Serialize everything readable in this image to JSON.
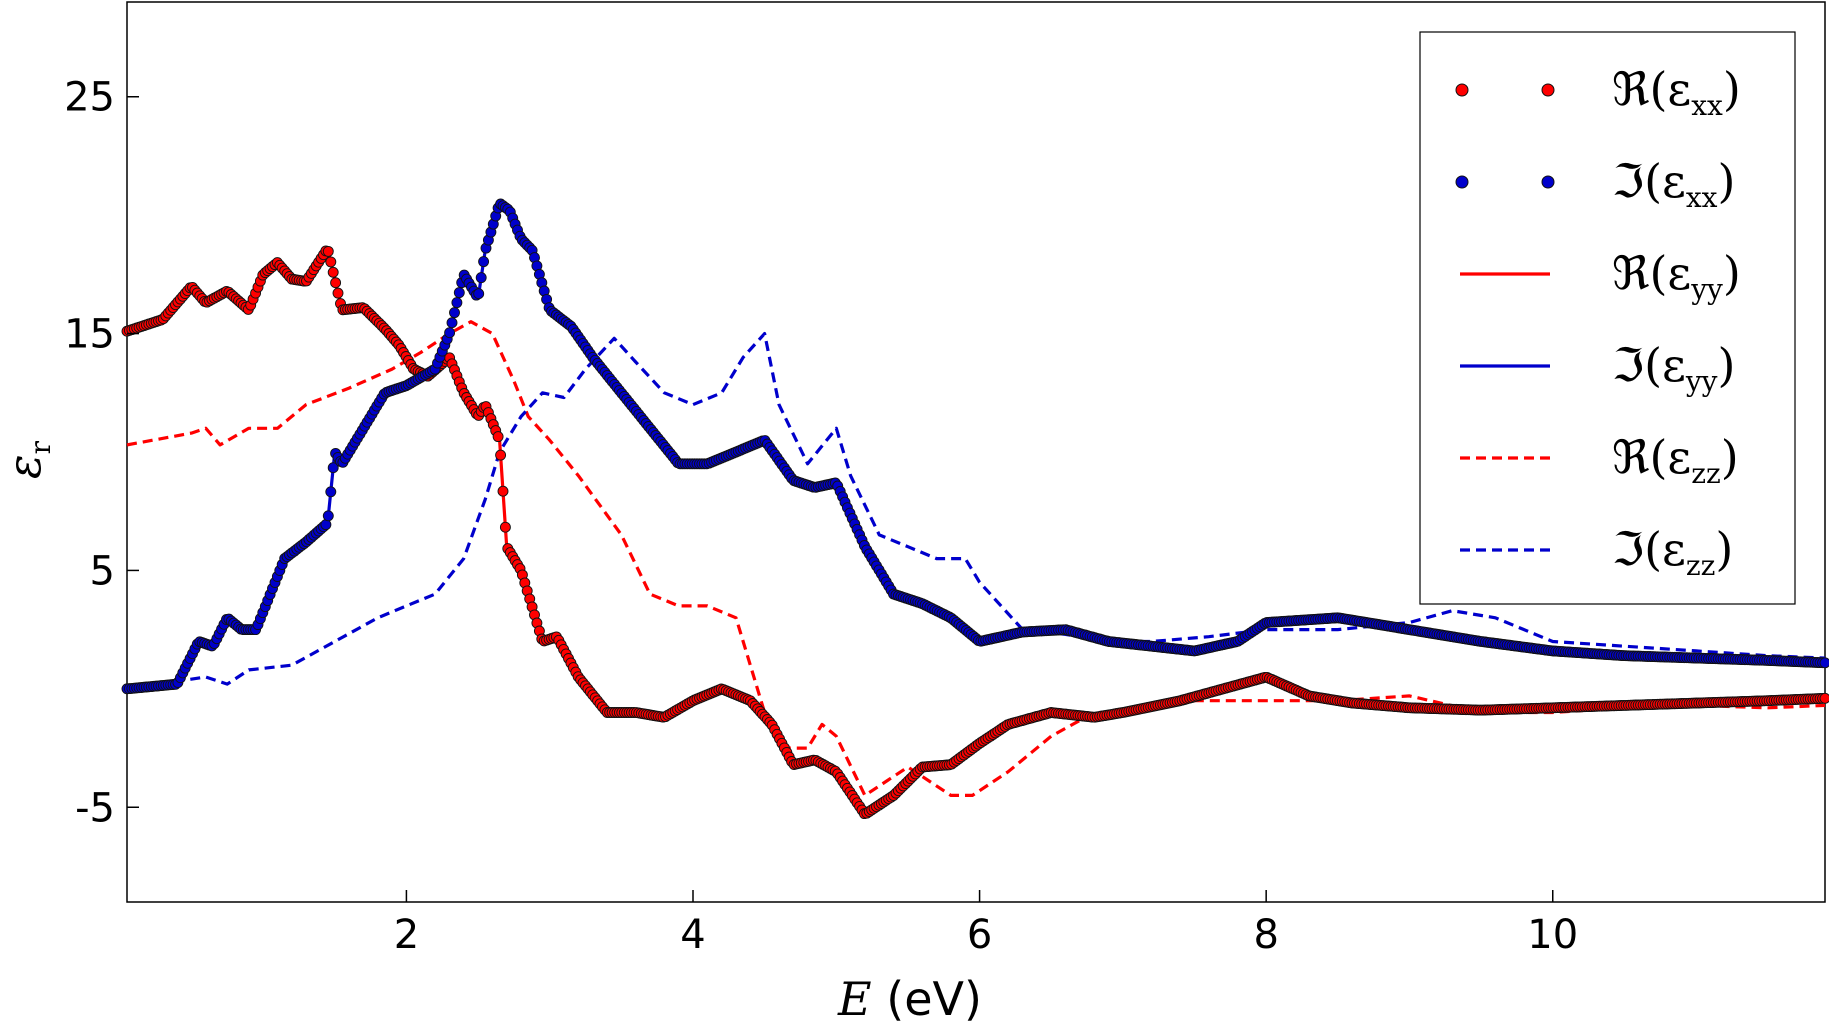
{
  "chart_data": {
    "type": "line",
    "title": "",
    "xlabel": {
      "var": "E",
      "unit": " (eV)"
    },
    "ylabel": {
      "var": "ε",
      "sub": "r"
    },
    "xlim": [
      0.05,
      11.9
    ],
    "ylim": [
      -9,
      29
    ],
    "xticks": [
      2,
      4,
      6,
      8,
      10
    ],
    "xtick_labels": [
      "2",
      "4",
      "6",
      "8",
      "10"
    ],
    "yticks": [
      -5,
      5,
      15,
      25
    ],
    "ytick_labels": [
      "-5",
      "5",
      "15",
      "25"
    ],
    "grid": false,
    "legend_position": "top-right",
    "colors": {
      "real": "#ff0000",
      "imag": "#0000cc"
    },
    "series": [
      {
        "name": "ℜ(εxx)",
        "legend_main": "ℜ(ε",
        "legend_sub": "xx",
        "legend_close": ")",
        "style": "markers",
        "color": "#ff0000",
        "x": [
          0.05,
          0.3,
          0.5,
          0.6,
          0.75,
          0.9,
          1.0,
          1.1,
          1.2,
          1.3,
          1.45,
          1.55,
          1.7,
          1.85,
          1.95,
          2.05,
          2.15,
          2.3,
          2.4,
          2.5,
          2.55,
          2.65,
          2.7,
          2.8,
          2.95,
          3.05,
          3.2,
          3.4,
          3.6,
          3.8,
          4.0,
          4.2,
          4.4,
          4.55,
          4.7,
          4.85,
          5.0,
          5.2,
          5.4,
          5.6,
          5.8,
          6.0,
          6.2,
          6.5,
          6.8,
          7.0,
          7.4,
          7.7,
          8.0,
          8.3,
          8.6,
          9.0,
          9.5,
          10.0,
          10.5,
          11.0,
          11.5,
          11.9
        ],
        "values": [
          15.1,
          15.6,
          17.0,
          16.3,
          16.8,
          16.0,
          17.5,
          18.0,
          17.3,
          17.2,
          18.6,
          16.0,
          16.1,
          15.2,
          14.5,
          13.5,
          13.2,
          14.0,
          12.5,
          11.5,
          12.0,
          10.5,
          6.0,
          5.0,
          2.0,
          2.2,
          0.5,
          -1.0,
          -1.0,
          -1.2,
          -0.5,
          0.0,
          -0.5,
          -1.5,
          -3.2,
          -3.0,
          -3.5,
          -5.3,
          -4.5,
          -3.3,
          -3.2,
          -2.3,
          -1.5,
          -1.0,
          -1.2,
          -1.0,
          -0.5,
          0.0,
          0.5,
          -0.3,
          -0.6,
          -0.8,
          -0.9,
          -0.8,
          -0.7,
          -0.6,
          -0.5,
          -0.4
        ]
      },
      {
        "name": "ℑ(εxx)",
        "legend_main": "ℑ(ε",
        "legend_sub": "xx",
        "legend_close": ")",
        "style": "markers",
        "color": "#0000cc",
        "x": [
          0.05,
          0.4,
          0.55,
          0.65,
          0.75,
          0.85,
          0.95,
          1.05,
          1.15,
          1.3,
          1.45,
          1.5,
          1.55,
          1.65,
          1.85,
          2.0,
          2.2,
          2.3,
          2.4,
          2.5,
          2.55,
          2.65,
          2.72,
          2.8,
          2.88,
          3.0,
          3.15,
          3.3,
          3.5,
          3.7,
          3.9,
          4.1,
          4.3,
          4.5,
          4.7,
          4.85,
          5.0,
          5.2,
          5.4,
          5.6,
          5.8,
          6.0,
          6.3,
          6.6,
          6.9,
          7.2,
          7.5,
          7.8,
          8.0,
          8.5,
          9.0,
          9.5,
          10.0,
          10.5,
          11.0,
          11.5,
          11.9
        ],
        "values": [
          0.0,
          0.2,
          2.0,
          1.8,
          3.0,
          2.5,
          2.5,
          4.0,
          5.5,
          6.2,
          7.0,
          10.0,
          9.5,
          10.5,
          12.5,
          12.8,
          13.5,
          15.0,
          17.5,
          16.5,
          18.5,
          20.5,
          20.2,
          19.0,
          18.5,
          16.0,
          15.3,
          14.0,
          12.5,
          11.0,
          9.5,
          9.5,
          10.0,
          10.5,
          8.8,
          8.5,
          8.7,
          6.0,
          4.0,
          3.6,
          3.0,
          2.0,
          2.4,
          2.5,
          2.0,
          1.8,
          1.6,
          2.0,
          2.8,
          3.0,
          2.5,
          2.0,
          1.6,
          1.4,
          1.3,
          1.2,
          1.1
        ]
      },
      {
        "name": "ℜ(εyy)",
        "legend_main": "ℜ(ε",
        "legend_sub": "yy",
        "legend_close": ")",
        "style": "solid",
        "color": "#ff0000",
        "x": [
          0.05,
          0.3,
          0.5,
          0.6,
          0.75,
          0.9,
          1.0,
          1.1,
          1.2,
          1.3,
          1.45,
          1.55,
          1.7,
          1.85,
          1.95,
          2.05,
          2.15,
          2.3,
          2.4,
          2.5,
          2.55,
          2.65,
          2.7,
          2.8,
          2.95,
          3.05,
          3.2,
          3.4,
          3.6,
          3.8,
          4.0,
          4.2,
          4.4,
          4.55,
          4.7,
          4.85,
          5.0,
          5.2,
          5.4,
          5.6,
          5.8,
          6.0,
          6.2,
          6.5,
          6.8,
          7.0,
          7.4,
          7.7,
          8.0,
          8.3,
          8.6,
          9.0,
          9.5,
          10.0,
          10.5,
          11.0,
          11.5,
          11.9
        ],
        "values": [
          15.1,
          15.6,
          17.0,
          16.3,
          16.8,
          16.0,
          17.5,
          18.0,
          17.3,
          17.2,
          18.6,
          16.0,
          16.1,
          15.2,
          14.5,
          13.5,
          13.2,
          14.0,
          12.5,
          11.5,
          12.0,
          10.5,
          6.0,
          5.0,
          2.0,
          2.2,
          0.5,
          -1.0,
          -1.0,
          -1.2,
          -0.5,
          0.0,
          -0.5,
          -1.5,
          -3.2,
          -3.0,
          -3.5,
          -5.3,
          -4.5,
          -3.3,
          -3.2,
          -2.3,
          -1.5,
          -1.0,
          -1.2,
          -1.0,
          -0.5,
          0.0,
          0.5,
          -0.3,
          -0.6,
          -0.8,
          -0.9,
          -0.8,
          -0.7,
          -0.6,
          -0.5,
          -0.4
        ]
      },
      {
        "name": "ℑ(εyy)",
        "legend_main": "ℑ(ε",
        "legend_sub": "yy",
        "legend_close": ")",
        "style": "solid",
        "color": "#0000cc",
        "x": [
          0.05,
          0.4,
          0.55,
          0.65,
          0.75,
          0.85,
          0.95,
          1.05,
          1.15,
          1.3,
          1.45,
          1.5,
          1.55,
          1.65,
          1.85,
          2.0,
          2.2,
          2.3,
          2.4,
          2.5,
          2.55,
          2.65,
          2.72,
          2.8,
          2.88,
          3.0,
          3.15,
          3.3,
          3.5,
          3.7,
          3.9,
          4.1,
          4.3,
          4.5,
          4.7,
          4.85,
          5.0,
          5.2,
          5.4,
          5.6,
          5.8,
          6.0,
          6.3,
          6.6,
          6.9,
          7.2,
          7.5,
          7.8,
          8.0,
          8.5,
          9.0,
          9.5,
          10.0,
          10.5,
          11.0,
          11.5,
          11.9
        ],
        "values": [
          0.0,
          0.2,
          2.0,
          1.8,
          3.0,
          2.5,
          2.5,
          4.0,
          5.5,
          6.2,
          7.0,
          10.0,
          9.5,
          10.5,
          12.5,
          12.8,
          13.5,
          15.0,
          17.5,
          16.5,
          18.5,
          20.5,
          20.2,
          19.0,
          18.5,
          16.0,
          15.3,
          14.0,
          12.5,
          11.0,
          9.5,
          9.5,
          10.0,
          10.5,
          8.8,
          8.5,
          8.7,
          6.0,
          4.0,
          3.6,
          3.0,
          2.0,
          2.4,
          2.5,
          2.0,
          1.8,
          1.6,
          2.0,
          2.8,
          3.0,
          2.5,
          2.0,
          1.6,
          1.4,
          1.3,
          1.2,
          1.1
        ]
      },
      {
        "name": "ℜ(εzz)",
        "legend_main": "ℜ(ε",
        "legend_sub": "zz",
        "legend_close": ")",
        "style": "dashed",
        "color": "#ff0000",
        "x": [
          0.05,
          0.5,
          0.6,
          0.7,
          0.9,
          1.1,
          1.3,
          1.6,
          1.9,
          2.1,
          2.3,
          2.45,
          2.6,
          2.75,
          2.85,
          3.0,
          3.2,
          3.5,
          3.7,
          3.9,
          4.1,
          4.3,
          4.5,
          4.65,
          4.8,
          4.9,
          5.0,
          5.2,
          5.5,
          5.8,
          5.95,
          6.2,
          6.5,
          6.8,
          7.0,
          7.4,
          8.0,
          8.5,
          9.0,
          9.5,
          10.0,
          10.5,
          11.0,
          11.5,
          11.9
        ],
        "values": [
          10.3,
          10.8,
          11.0,
          10.3,
          11.0,
          11.0,
          12.0,
          12.7,
          13.5,
          14.2,
          15.0,
          15.5,
          15.0,
          13.0,
          11.5,
          10.5,
          9.0,
          6.5,
          4.0,
          3.5,
          3.5,
          3.0,
          -1.0,
          -2.5,
          -2.5,
          -1.5,
          -2.0,
          -4.5,
          -3.3,
          -4.5,
          -4.5,
          -3.5,
          -2.0,
          -1.0,
          -1.0,
          -0.5,
          -0.5,
          -0.5,
          -0.3,
          -1.0,
          -1.0,
          -0.8,
          -0.7,
          -0.8,
          -0.7
        ]
      },
      {
        "name": "ℑ(εzz)",
        "legend_main": "ℑ(ε",
        "legend_sub": "zz",
        "legend_close": ")",
        "style": "dashed",
        "color": "#0000cc",
        "x": [
          0.05,
          0.6,
          0.75,
          0.9,
          1.2,
          1.5,
          1.8,
          2.0,
          2.2,
          2.4,
          2.55,
          2.65,
          2.8,
          2.95,
          3.1,
          3.25,
          3.45,
          3.6,
          3.8,
          4.0,
          4.2,
          4.35,
          4.5,
          4.6,
          4.8,
          5.0,
          5.1,
          5.3,
          5.5,
          5.7,
          5.9,
          6.0,
          6.3,
          6.6,
          6.9,
          7.2,
          7.6,
          8.0,
          8.5,
          9.0,
          9.3,
          9.6,
          10.0,
          10.5,
          11.0,
          11.5,
          11.9
        ],
        "values": [
          0.0,
          0.5,
          0.2,
          0.8,
          1.0,
          2.0,
          3.0,
          3.5,
          4.0,
          5.5,
          8.0,
          10.0,
          11.5,
          12.5,
          12.3,
          13.5,
          14.8,
          13.8,
          12.5,
          12.0,
          12.5,
          14.0,
          15.0,
          12.0,
          9.5,
          11.0,
          9.0,
          6.5,
          6.0,
          5.5,
          5.5,
          4.5,
          2.5,
          2.3,
          2.0,
          2.0,
          2.2,
          2.5,
          2.5,
          2.8,
          3.3,
          3.0,
          2.0,
          1.8,
          1.6,
          1.4,
          1.3
        ]
      }
    ]
  }
}
